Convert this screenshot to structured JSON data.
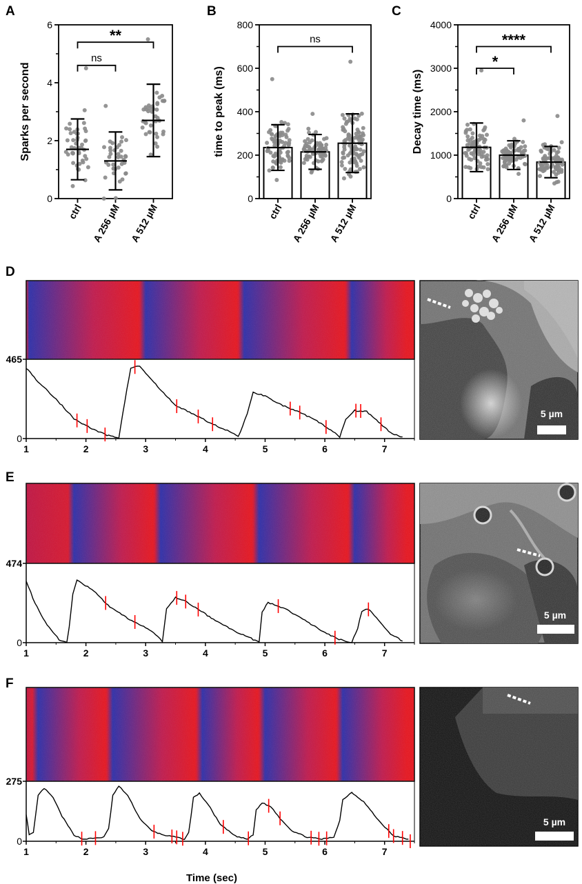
{
  "figure": {
    "panel_labels": [
      "A",
      "B",
      "C",
      "D",
      "E",
      "F"
    ],
    "scale_bar_label": "5 µm",
    "time_axis_label": "Time (sec)"
  },
  "colors": {
    "axis": "#000000",
    "point": "#8a8a8a",
    "trace": "#000000",
    "spark_mark": "#ff0000",
    "kymo_blue": "#2a2aa8",
    "kymo_red": "#e8101a"
  },
  "chart_data": [
    {
      "id": "A",
      "type": "scatter",
      "ylabel": "Sparks per second",
      "xlabel": "",
      "categories": [
        "ctrl",
        "A 256 µM",
        "A 512 µM"
      ],
      "ylim": [
        0,
        6
      ],
      "yticks": [
        0,
        2,
        4,
        6
      ],
      "bars": false,
      "mean": [
        1.7,
        1.3,
        2.7
      ],
      "sd": [
        1.05,
        1.0,
        1.25
      ],
      "n_points": [
        45,
        38,
        38
      ],
      "point_range": [
        [
          0.0,
          4.5
        ],
        [
          0.0,
          3.2
        ],
        [
          0.0,
          5.5
        ]
      ],
      "brackets": [
        {
          "from": 0,
          "to": 1,
          "y": 4.6,
          "label": "ns"
        },
        {
          "from": 0,
          "to": 2,
          "y": 5.4,
          "label": "**"
        }
      ]
    },
    {
      "id": "B",
      "type": "bar",
      "ylabel": "time to peak (ms)",
      "xlabel": "",
      "categories": [
        "ctrl",
        "A 256 µM",
        "A 512 µM"
      ],
      "ylim": [
        0,
        800
      ],
      "yticks": [
        0,
        200,
        400,
        600,
        800
      ],
      "bars": true,
      "mean": [
        235,
        215,
        255
      ],
      "sd": [
        105,
        80,
        135
      ],
      "n_points": [
        80,
        70,
        100
      ],
      "point_range": [
        [
          60,
          550
        ],
        [
          70,
          390
        ],
        [
          40,
          630
        ]
      ],
      "brackets": [
        {
          "from": 0,
          "to": 2,
          "y": 700,
          "label": "ns"
        }
      ]
    },
    {
      "id": "C",
      "type": "bar",
      "ylabel": "Decay time (ms)",
      "xlabel": "",
      "categories": [
        "ctrl",
        "A 256 µM",
        "A 512 µM"
      ],
      "ylim": [
        0,
        4000
      ],
      "yticks": [
        0,
        1000,
        2000,
        3000,
        4000
      ],
      "bars": true,
      "mean": [
        1180,
        1000,
        840
      ],
      "sd": [
        560,
        330,
        360
      ],
      "n_points": [
        80,
        75,
        80
      ],
      "point_range": [
        [
          50,
          2950
        ],
        [
          100,
          1800
        ],
        [
          50,
          1900
        ]
      ],
      "brackets": [
        {
          "from": 0,
          "to": 1,
          "y": 3000,
          "label": "*"
        },
        {
          "from": 0,
          "to": 2,
          "y": 3500,
          "label": "****"
        }
      ]
    },
    {
      "id": "D",
      "type": "line",
      "xlabel": "",
      "xlim": [
        1,
        7.5
      ],
      "xticks": [
        1,
        2,
        3,
        4,
        5,
        6,
        7
      ],
      "ylim": [
        0,
        465
      ],
      "yticks": [
        0,
        465
      ],
      "kymo_dark_times": [
        1.05,
        3.0,
        4.65,
        6.45
      ],
      "x": [
        1.0,
        1.2,
        1.5,
        1.8,
        2.1,
        2.35,
        2.55,
        2.62,
        2.75,
        2.9,
        3.2,
        3.5,
        3.8,
        4.1,
        4.4,
        4.55,
        4.7,
        4.8,
        5.0,
        5.3,
        5.6,
        5.9,
        6.1,
        6.25,
        6.35,
        6.5,
        6.7,
        6.9,
        7.1,
        7.3
      ],
      "y": [
        430,
        345,
        240,
        120,
        60,
        20,
        5,
        160,
        430,
        440,
        315,
        200,
        150,
        90,
        45,
        10,
        150,
        280,
        260,
        200,
        155,
        100,
        50,
        10,
        120,
        170,
        165,
        100,
        35,
        10
      ],
      "spark_times": [
        1.85,
        2.02,
        2.32,
        2.82,
        3.52,
        3.88,
        4.12,
        5.42,
        5.58,
        6.02,
        6.52,
        6.6,
        6.94
      ]
    },
    {
      "id": "E",
      "type": "line",
      "xlabel": "",
      "xlim": [
        1,
        7.5
      ],
      "xticks": [
        1,
        2,
        3,
        4,
        5,
        6,
        7
      ],
      "ylim": [
        0,
        474
      ],
      "yticks": [
        0,
        474
      ],
      "kymo_dark_times": [
        1.8,
        3.25,
        4.9,
        6.5
      ],
      "x": [
        1.0,
        1.15,
        1.35,
        1.55,
        1.68,
        1.72,
        1.78,
        1.85,
        2.1,
        2.4,
        2.7,
        3.0,
        3.2,
        3.28,
        3.35,
        3.5,
        3.7,
        3.9,
        4.2,
        4.5,
        4.8,
        4.9,
        4.95,
        5.05,
        5.3,
        5.6,
        5.9,
        6.2,
        6.45,
        6.55,
        6.62,
        6.72,
        6.9,
        7.1,
        7.3
      ],
      "y": [
        385,
        240,
        110,
        20,
        0,
        100,
        300,
        385,
        330,
        220,
        150,
        95,
        40,
        5,
        210,
        280,
        250,
        200,
        130,
        70,
        20,
        5,
        190,
        250,
        215,
        155,
        85,
        25,
        0,
        90,
        195,
        210,
        140,
        55,
        10
      ],
      "spark_times": [
        2.33,
        2.82,
        3.52,
        3.67,
        3.88,
        5.22,
        6.17,
        6.73
      ]
    },
    {
      "id": "F",
      "type": "line",
      "xlabel": "Time (sec)",
      "xlim": [
        1,
        7.5
      ],
      "xticks": [
        1,
        2,
        3,
        4,
        5,
        6,
        7
      ],
      "ylim": [
        0,
        275
      ],
      "yticks": [
        0,
        275
      ],
      "kymo_dark_times": [
        1.2,
        2.45,
        3.95,
        5.0,
        6.3
      ],
      "x": [
        1.0,
        1.05,
        1.12,
        1.2,
        1.3,
        1.45,
        1.6,
        1.8,
        1.95,
        2.15,
        2.3,
        2.38,
        2.45,
        2.55,
        2.7,
        2.9,
        3.1,
        3.3,
        3.5,
        3.65,
        3.72,
        3.8,
        3.9,
        4.05,
        4.25,
        4.5,
        4.7,
        4.8,
        4.85,
        4.95,
        5.1,
        5.25,
        5.45,
        5.7,
        5.95,
        6.15,
        6.25,
        6.3,
        6.45,
        6.65,
        6.9,
        7.15,
        7.4
      ],
      "y": [
        130,
        30,
        40,
        220,
        255,
        210,
        120,
        30,
        10,
        15,
        20,
        60,
        220,
        265,
        220,
        110,
        50,
        30,
        20,
        10,
        40,
        210,
        230,
        175,
        80,
        25,
        10,
        30,
        150,
        185,
        165,
        110,
        50,
        20,
        10,
        20,
        100,
        200,
        235,
        190,
        100,
        25,
        10
      ],
      "spark_times": [
        1.93,
        2.16,
        3.14,
        3.44,
        3.52,
        3.62,
        4.3,
        4.72,
        5.06,
        5.25,
        5.77,
        5.9,
        6.03,
        7.07,
        7.15,
        7.3,
        7.43
      ]
    }
  ]
}
